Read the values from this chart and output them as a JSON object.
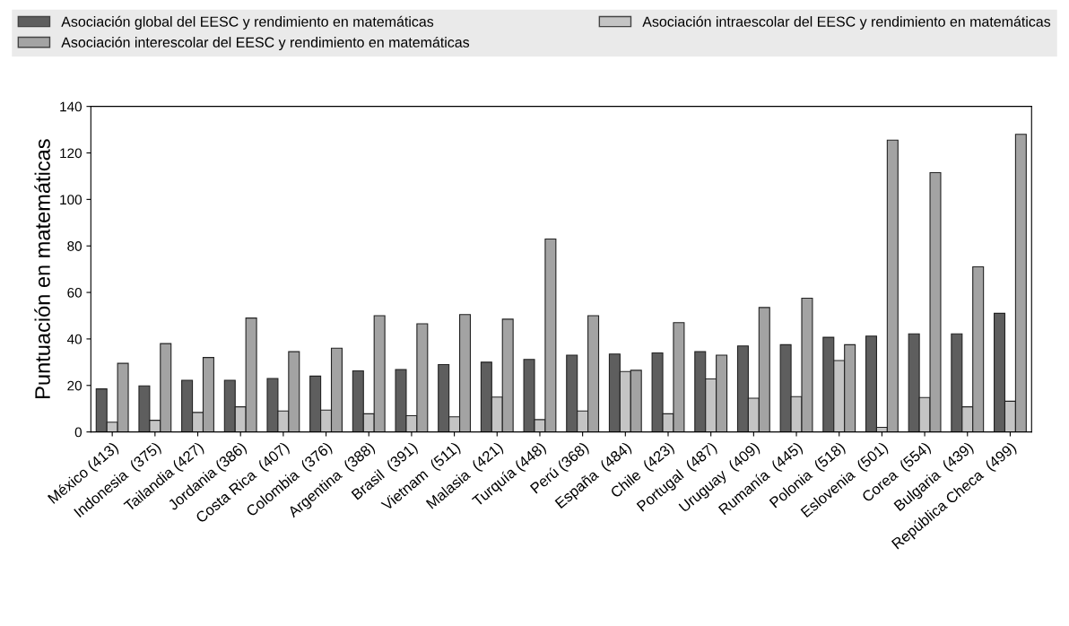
{
  "chart_data": {
    "type": "bar",
    "ylabel": "Puntuación en matemáticas",
    "categories": [
      "México (413)",
      "Indonesia  (375)",
      "Tailandia (427)",
      "Jordania (386)",
      "Costa Rica  (407)",
      "Colombia  (376)",
      "Argentina  (388)",
      "Brasil  (391)",
      "Vietnam  (511)",
      "Malasia  (421)",
      "Turquía (448)",
      "Perú (368)",
      "España  (484)",
      "Chile  (423)",
      "Portugal  (487)",
      "Uruguay  (409)",
      "Rumanía  (445)",
      "Polonia  (518)",
      "Eslovenia  (501)",
      "Corea  (554)",
      "Bulgaria  (439)",
      "República Checa  (499)"
    ],
    "series": [
      {
        "name": "Asociación global del EESC y rendimiento en matemáticas",
        "color": "#5e5e5e",
        "values": [
          18.5,
          19.8,
          22.2,
          22.2,
          23,
          24,
          26.3,
          26.8,
          29,
          30,
          31.2,
          33,
          33.5,
          34,
          34.5,
          37,
          37.5,
          40.7,
          41.2,
          42.2,
          42.2,
          51
        ]
      },
      {
        "name": "Asociación intraescolar del EESC y rendimiento en matemáticas",
        "color": "#c4c4c4",
        "values": [
          4.2,
          5,
          8.4,
          10.8,
          9,
          9.4,
          7.8,
          7,
          6.5,
          15,
          5.3,
          9,
          26,
          7.8,
          22.8,
          14.5,
          15.2,
          30.7,
          2,
          14.8,
          10.8,
          13.2
        ]
      },
      {
        "name": "Asociación interescolar del EESC y rendimiento en matemáticas",
        "color": "#a3a3a3",
        "values": [
          29.5,
          38,
          32,
          49,
          34.5,
          36,
          50,
          46.5,
          50.5,
          48.5,
          83,
          50,
          26.5,
          47,
          33,
          53.5,
          57.5,
          37.5,
          125.5,
          111.5,
          71,
          128
        ]
      }
    ],
    "ylim": [
      0,
      140
    ],
    "yticks": [
      0,
      20,
      40,
      60,
      80,
      100,
      120,
      140
    ],
    "grid": false,
    "legend": "top"
  }
}
